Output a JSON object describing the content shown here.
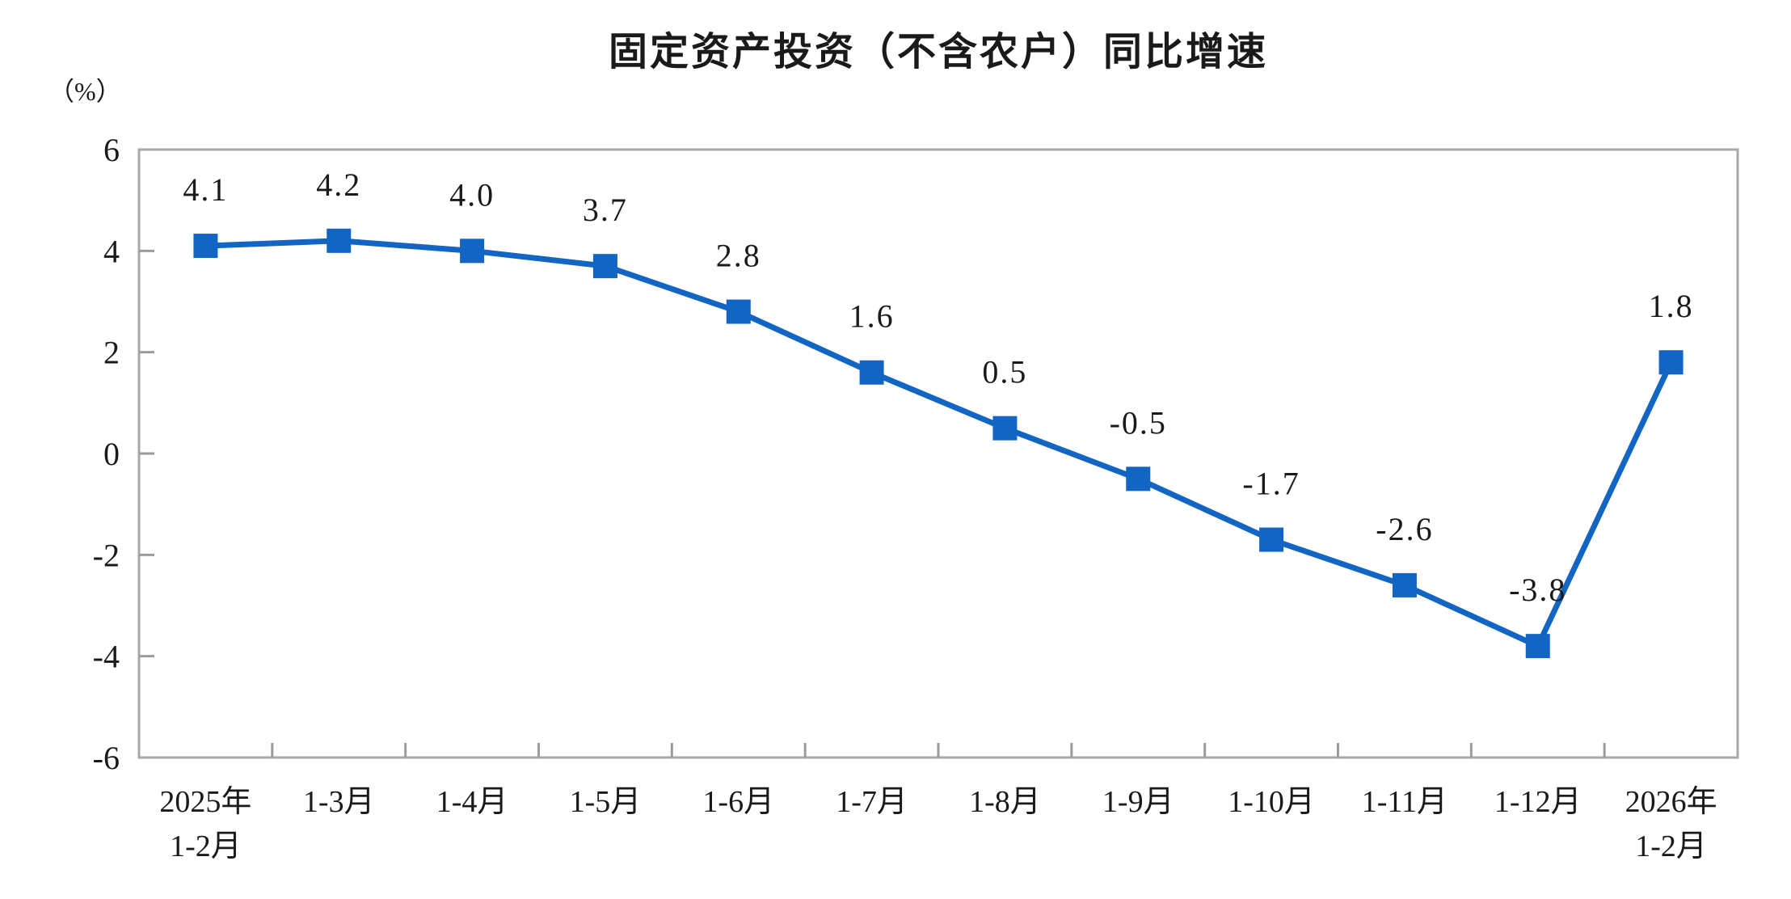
{
  "page": {
    "background": "#ffffff"
  },
  "chart_data": {
    "type": "line",
    "title": "固定资产投资（不含农户）同比增速",
    "unit_label": "（%）",
    "categories": [
      [
        "2025年",
        "1-2月"
      ],
      [
        "1-3月"
      ],
      [
        "1-4月"
      ],
      [
        "1-5月"
      ],
      [
        "1-6月"
      ],
      [
        "1-7月"
      ],
      [
        "1-8月"
      ],
      [
        "1-9月"
      ],
      [
        "1-10月"
      ],
      [
        "1-11月"
      ],
      [
        "1-12月"
      ],
      [
        "2026年",
        "1-2月"
      ]
    ],
    "values": [
      4.1,
      4.2,
      4.0,
      3.7,
      2.8,
      1.6,
      0.5,
      -0.5,
      -1.7,
      -2.6,
      -3.8,
      1.8
    ],
    "data_labels": [
      "4.1",
      "4.2",
      "4.0",
      "3.7",
      "2.8",
      "1.6",
      "0.5",
      "-0.5",
      "-1.7",
      "-2.6",
      "-3.8",
      "1.8"
    ],
    "ylim": [
      -6,
      6
    ],
    "yticks": [
      6,
      4,
      2,
      0,
      -2,
      -4,
      -6
    ],
    "grid": false,
    "legend_position": "none",
    "marker": "square",
    "colors": {
      "series": "#1265C2",
      "axis": "#a8a8a8",
      "text": "#1a1a1a",
      "title": "#1a1a1a",
      "background": "#ffffff"
    }
  }
}
